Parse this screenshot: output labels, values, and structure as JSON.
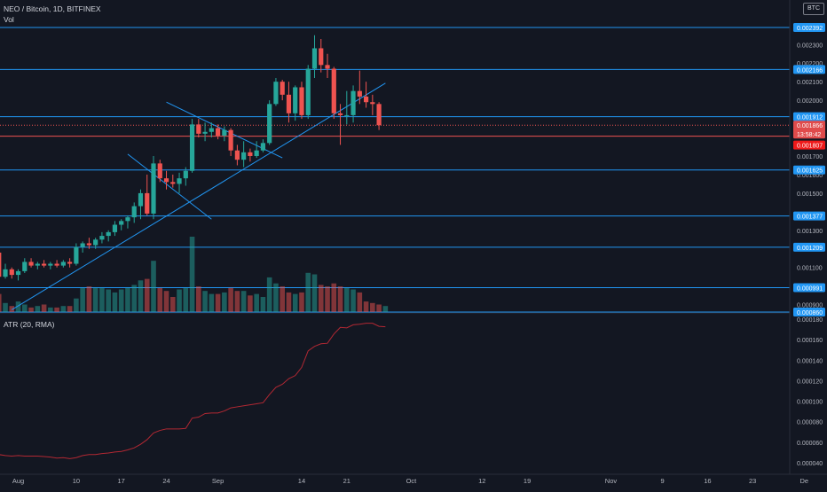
{
  "header": {
    "title": "NEO / Bitcoin, 1D, BITFINEX",
    "volume_label": "Vol",
    "indicator_label": "ATR (20, RMA)",
    "currency": "BTC"
  },
  "colors": {
    "background": "#131722",
    "up": "#26a69a",
    "down": "#ef5350",
    "level_line": "#2196f3",
    "current_price": "#ef5350",
    "atr": "#b22833"
  },
  "chart_data": [
    {
      "type": "candlestick",
      "pair": "NEO/BTC",
      "x_start": "2020-07-28",
      "ylim": [
        0.00084,
        0.00242
      ],
      "y_ticks": [
        "0.002300",
        "0.002200",
        "0.002100",
        "0.002000",
        "0.001700",
        "0.001600",
        "0.001500",
        "0.001300",
        "0.001100",
        "0.000900"
      ],
      "x_ticks": [
        {
          "date": "2020-08-01",
          "label": "Aug"
        },
        {
          "date": "2020-08-10",
          "label": "10"
        },
        {
          "date": "2020-08-17",
          "label": "17"
        },
        {
          "date": "2020-08-24",
          "label": "24"
        },
        {
          "date": "2020-09-01",
          "label": "Sep"
        },
        {
          "date": "2020-09-14",
          "label": "14"
        },
        {
          "date": "2020-09-21",
          "label": "21"
        },
        {
          "date": "2020-10-01",
          "label": "Oct"
        },
        {
          "date": "2020-10-12",
          "label": "12"
        },
        {
          "date": "2020-10-19",
          "label": "19"
        },
        {
          "date": "2020-11-01",
          "label": "Nov"
        },
        {
          "date": "2020-11-09",
          "label": "9"
        },
        {
          "date": "2020-11-16",
          "label": "16"
        },
        {
          "date": "2020-11-23",
          "label": "23"
        },
        {
          "date": "2020-12-01",
          "label": "De"
        }
      ],
      "levels": [
        {
          "value": 0.002392,
          "label": "0.002392"
        },
        {
          "value": 0.002166,
          "label": "0.002166"
        },
        {
          "value": 0.001912,
          "label": "0.001912"
        },
        {
          "value": 0.001625,
          "label": "0.001625"
        },
        {
          "value": 0.001377,
          "label": "0.001377"
        },
        {
          "value": 0.001209,
          "label": "0.001209"
        },
        {
          "value": 0.000991,
          "label": "0.000991"
        },
        {
          "value": 0.00086,
          "label": "0.000860"
        }
      ],
      "current_price": {
        "value": 0.001866,
        "label": "0.001866",
        "countdown": "13:58:42"
      },
      "red_level": {
        "value": 0.001807,
        "label": "0.001807"
      },
      "trendlines": [
        {
          "start": [
            "2020-07-31",
            0.000872
          ],
          "end": [
            "2020-09-27",
            0.002092
          ]
        },
        {
          "start": [
            "2020-08-24",
            0.00199
          ],
          "end": [
            "2020-09-11",
            0.00169
          ]
        },
        {
          "start": [
            "2020-08-18",
            0.00171
          ],
          "end": [
            "2020-08-31",
            0.00136
          ]
        }
      ],
      "candles": [
        {
          "o": 0.0012,
          "h": 0.00122,
          "l": 0.00116,
          "c": 0.00118
        },
        {
          "o": 0.00118,
          "h": 0.00119,
          "l": 0.00102,
          "c": 0.00105
        },
        {
          "o": 0.00105,
          "h": 0.00112,
          "l": 0.00104,
          "c": 0.00109
        },
        {
          "o": 0.00109,
          "h": 0.0011,
          "l": 0.00104,
          "c": 0.00106
        },
        {
          "o": 0.00106,
          "h": 0.00109,
          "l": 0.00103,
          "c": 0.00108
        },
        {
          "o": 0.00108,
          "h": 0.00115,
          "l": 0.00107,
          "c": 0.00113
        },
        {
          "o": 0.00113,
          "h": 0.00115,
          "l": 0.0011,
          "c": 0.00111
        },
        {
          "o": 0.00111,
          "h": 0.00113,
          "l": 0.00109,
          "c": 0.00112
        },
        {
          "o": 0.00112,
          "h": 0.00114,
          "l": 0.0011,
          "c": 0.00111
        },
        {
          "o": 0.00111,
          "h": 0.00113,
          "l": 0.00109,
          "c": 0.00112
        },
        {
          "o": 0.00112,
          "h": 0.00114,
          "l": 0.0011,
          "c": 0.00111
        },
        {
          "o": 0.00111,
          "h": 0.00114,
          "l": 0.0011,
          "c": 0.00113
        },
        {
          "o": 0.00113,
          "h": 0.00115,
          "l": 0.0011,
          "c": 0.00112
        },
        {
          "o": 0.00112,
          "h": 0.00123,
          "l": 0.00111,
          "c": 0.00121
        },
        {
          "o": 0.00121,
          "h": 0.00124,
          "l": 0.00118,
          "c": 0.00123
        },
        {
          "o": 0.00123,
          "h": 0.00126,
          "l": 0.0012,
          "c": 0.00122
        },
        {
          "o": 0.00122,
          "h": 0.00126,
          "l": 0.0012,
          "c": 0.00125
        },
        {
          "o": 0.00125,
          "h": 0.00129,
          "l": 0.00123,
          "c": 0.00127
        },
        {
          "o": 0.00127,
          "h": 0.0013,
          "l": 0.00124,
          "c": 0.00129
        },
        {
          "o": 0.00129,
          "h": 0.00135,
          "l": 0.00127,
          "c": 0.00133
        },
        {
          "o": 0.00133,
          "h": 0.00136,
          "l": 0.0013,
          "c": 0.00135
        },
        {
          "o": 0.00135,
          "h": 0.00138,
          "l": 0.00131,
          "c": 0.00137
        },
        {
          "o": 0.00137,
          "h": 0.00145,
          "l": 0.00134,
          "c": 0.00143
        },
        {
          "o": 0.00143,
          "h": 0.00152,
          "l": 0.00136,
          "c": 0.0015
        },
        {
          "o": 0.0015,
          "h": 0.0016,
          "l": 0.00138,
          "c": 0.00139
        },
        {
          "o": 0.00139,
          "h": 0.0017,
          "l": 0.00136,
          "c": 0.00166
        },
        {
          "o": 0.00166,
          "h": 0.00168,
          "l": 0.00156,
          "c": 0.00158
        },
        {
          "o": 0.00158,
          "h": 0.00162,
          "l": 0.00152,
          "c": 0.00156
        },
        {
          "o": 0.00156,
          "h": 0.0016,
          "l": 0.00153,
          "c": 0.00155
        },
        {
          "o": 0.00155,
          "h": 0.00161,
          "l": 0.0015,
          "c": 0.00158
        },
        {
          "o": 0.00158,
          "h": 0.00164,
          "l": 0.00154,
          "c": 0.00162
        },
        {
          "o": 0.00162,
          "h": 0.0019,
          "l": 0.00161,
          "c": 0.00187
        },
        {
          "o": 0.00187,
          "h": 0.0019,
          "l": 0.0018,
          "c": 0.00182
        },
        {
          "o": 0.00182,
          "h": 0.00188,
          "l": 0.00178,
          "c": 0.00183
        },
        {
          "o": 0.00183,
          "h": 0.00188,
          "l": 0.0018,
          "c": 0.00185
        },
        {
          "o": 0.00185,
          "h": 0.00187,
          "l": 0.00179,
          "c": 0.00181
        },
        {
          "o": 0.00181,
          "h": 0.00186,
          "l": 0.00178,
          "c": 0.00184
        },
        {
          "o": 0.00184,
          "h": 0.00185,
          "l": 0.0017,
          "c": 0.00173
        },
        {
          "o": 0.00173,
          "h": 0.00176,
          "l": 0.00165,
          "c": 0.00168
        },
        {
          "o": 0.00168,
          "h": 0.00178,
          "l": 0.00164,
          "c": 0.00172
        },
        {
          "o": 0.00172,
          "h": 0.00174,
          "l": 0.00167,
          "c": 0.0017
        },
        {
          "o": 0.0017,
          "h": 0.00178,
          "l": 0.00169,
          "c": 0.00173
        },
        {
          "o": 0.00173,
          "h": 0.00179,
          "l": 0.00172,
          "c": 0.00177
        },
        {
          "o": 0.00177,
          "h": 0.002,
          "l": 0.00176,
          "c": 0.00198
        },
        {
          "o": 0.00198,
          "h": 0.00212,
          "l": 0.00197,
          "c": 0.0021
        },
        {
          "o": 0.0021,
          "h": 0.00211,
          "l": 0.002,
          "c": 0.00203
        },
        {
          "o": 0.00203,
          "h": 0.0021,
          "l": 0.00188,
          "c": 0.00193
        },
        {
          "o": 0.00193,
          "h": 0.00208,
          "l": 0.00189,
          "c": 0.00207
        },
        {
          "o": 0.00207,
          "h": 0.0021,
          "l": 0.0019,
          "c": 0.00192
        },
        {
          "o": 0.00192,
          "h": 0.00219,
          "l": 0.0019,
          "c": 0.00217
        },
        {
          "o": 0.00217,
          "h": 0.00235,
          "l": 0.00212,
          "c": 0.00228
        },
        {
          "o": 0.00228,
          "h": 0.00233,
          "l": 0.00215,
          "c": 0.00219
        },
        {
          "o": 0.00219,
          "h": 0.00225,
          "l": 0.00212,
          "c": 0.00217
        },
        {
          "o": 0.00217,
          "h": 0.00218,
          "l": 0.0019,
          "c": 0.00193
        },
        {
          "o": 0.00193,
          "h": 0.00198,
          "l": 0.00176,
          "c": 0.00192
        },
        {
          "o": 0.00192,
          "h": 0.00205,
          "l": 0.00187,
          "c": 0.00192
        },
        {
          "o": 0.00192,
          "h": 0.00208,
          "l": 0.00188,
          "c": 0.00205
        },
        {
          "o": 0.00205,
          "h": 0.00216,
          "l": 0.00198,
          "c": 0.00202
        },
        {
          "o": 0.00202,
          "h": 0.0021,
          "l": 0.00196,
          "c": 0.00199
        },
        {
          "o": 0.00199,
          "h": 0.00203,
          "l": 0.00192,
          "c": 0.00198
        },
        {
          "o": 0.00198,
          "h": 0.00199,
          "l": 0.00184,
          "c": 0.001866
        }
      ]
    },
    {
      "type": "bar",
      "name": "Vol",
      "values_relative": [
        2.8,
        1.2,
        0.6,
        0.4,
        0.7,
        0.5,
        0.3,
        0.4,
        0.5,
        0.3,
        0.3,
        0.4,
        0.4,
        0.9,
        1.6,
        1.7,
        1.6,
        1.6,
        1.5,
        1.3,
        1.5,
        1.6,
        1.8,
        2.1,
        2.2,
        3.4,
        1.6,
        1.4,
        1.0,
        1.5,
        1.6,
        5.0,
        1.7,
        1.4,
        1.2,
        1.2,
        1.3,
        1.6,
        1.4,
        1.4,
        1.1,
        1.2,
        1.0,
        2.3,
        1.9,
        1.7,
        1.3,
        1.2,
        1.3,
        2.6,
        2.5,
        1.8,
        1.7,
        1.9,
        1.7,
        1.6,
        1.5,
        1.3,
        0.7,
        0.6,
        0.5,
        0.4
      ]
    },
    {
      "type": "line",
      "name": "ATR (20, RMA)",
      "ylim": [
        3e-05,
        0.000185
      ],
      "y_ticks": [
        "0.000180",
        "0.000160",
        "0.000140",
        "0.000120",
        "0.000100",
        "0.000080",
        "0.000060",
        "0.000040"
      ],
      "values": [
        4.75e-05,
        4.8e-05,
        4.7e-05,
        4.65e-05,
        4.7e-05,
        4.65e-05,
        4.65e-05,
        4.65e-05,
        4.6e-05,
        4.55e-05,
        4.45e-05,
        4.5e-05,
        4.4e-05,
        4.5e-05,
        4.7e-05,
        4.8e-05,
        4.8e-05,
        4.9e-05,
        4.95e-05,
        5.05e-05,
        5.1e-05,
        5.25e-05,
        5.45e-05,
        5.8e-05,
        6.25e-05,
        6.9e-05,
        7.15e-05,
        7.3e-05,
        7.3e-05,
        7.3e-05,
        7.35e-05,
        8.35e-05,
        8.45e-05,
        8.8e-05,
        8.85e-05,
        8.85e-05,
        9.05e-05,
        9.35e-05,
        9.45e-05,
        9.55e-05,
        9.65e-05,
        9.75e-05,
        9.85e-05,
        0.0001065,
        0.0001135,
        0.0001165,
        0.000122,
        0.000125,
        0.000133,
        0.000149,
        0.0001535,
        0.000156,
        0.0001565,
        0.0001655,
        0.000172,
        0.0001715,
        0.0001745,
        0.000175,
        0.000176,
        0.000176,
        0.000173,
        0.0001725
      ]
    }
  ]
}
